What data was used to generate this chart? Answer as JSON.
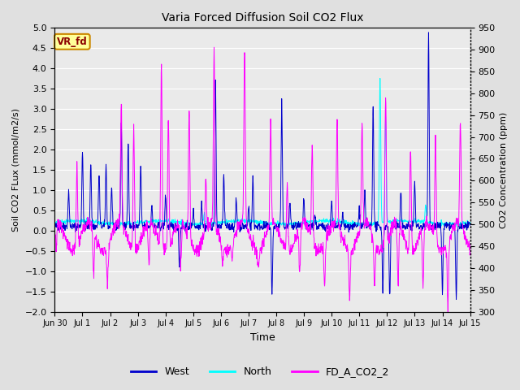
{
  "title": "Varia Forced Diffusion Soil CO2 Flux",
  "xlabel": "Time",
  "ylabel_left": "Soil CO2 FLux (mmol/m2/s)",
  "ylabel_right": "CO2 Concentration (ppm)",
  "ylim_left": [
    -2.0,
    5.0
  ],
  "ylim_right": [
    300,
    950
  ],
  "yticks_left": [
    -2.0,
    -1.5,
    -1.0,
    -0.5,
    0.0,
    0.5,
    1.0,
    1.5,
    2.0,
    2.5,
    3.0,
    3.5,
    4.0,
    4.5,
    5.0
  ],
  "yticks_right": [
    300,
    350,
    400,
    450,
    500,
    550,
    600,
    650,
    700,
    750,
    800,
    850,
    900,
    950
  ],
  "xtick_labels": [
    "Jun 30",
    "Jul 1",
    "Jul 2",
    "Jul 3",
    "Jul 4",
    "Jul 5",
    "Jul 6",
    "Jul 7",
    "Jul 8",
    "Jul 9",
    "Jul 10",
    "Jul 11",
    "Jul 12",
    "Jul 13",
    "Jul 14",
    "Jul 15"
  ],
  "color_west": "#0000CC",
  "color_north": "#00FFFF",
  "color_co2": "#FF00FF",
  "fig_bg_color": "#E0E0E0",
  "plot_bg_color": "#EAEAEA",
  "grid_color": "#FFFFFF",
  "vr_fd_label": "VR_fd",
  "vr_fd_bg": "#FFFF99",
  "vr_fd_border": "#CC8800",
  "vr_fd_text_color": "#8B0000",
  "legend_items": [
    "West",
    "North",
    "FD_A_CO2_2"
  ],
  "n_points": 1500,
  "seed": 42,
  "line_width": 0.7
}
